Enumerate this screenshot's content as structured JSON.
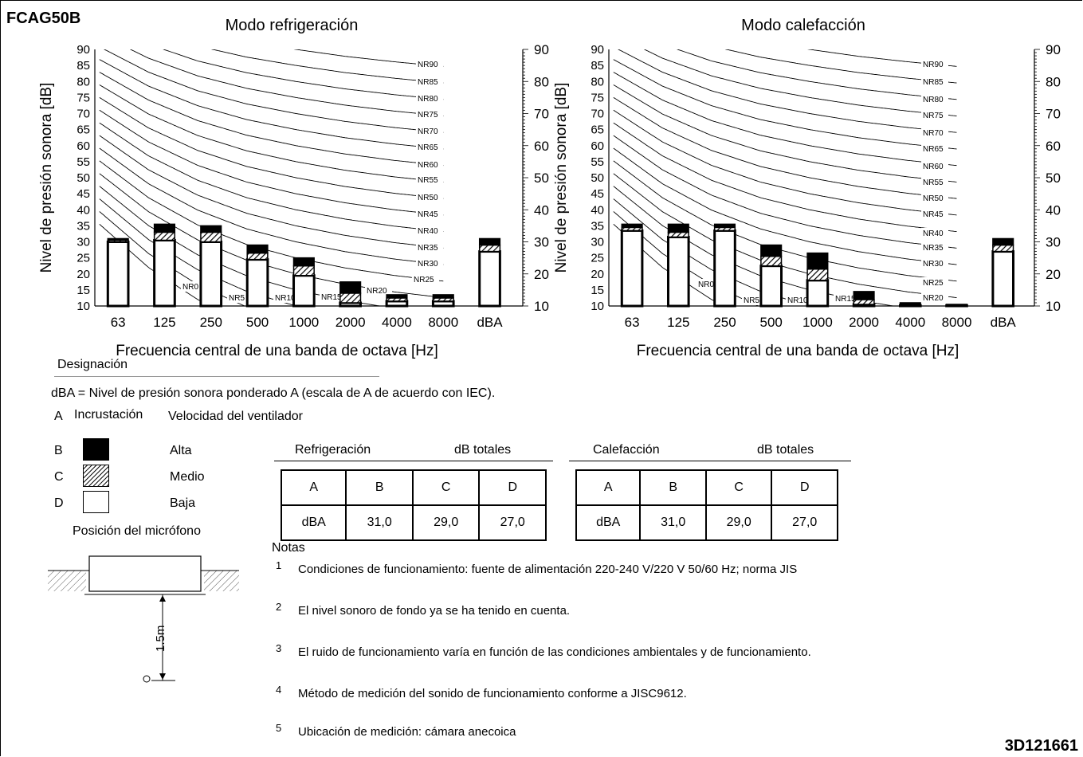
{
  "model": "FCAG50B",
  "doc_number": "3D121661",
  "colors": {
    "alta": "#000000",
    "baja": "#ffffff",
    "line": "#000000"
  },
  "chart_data": [
    {
      "type": "bar",
      "title": "Modo refrigeración",
      "xlabel": "Frecuencia central de una banda de octava [Hz]",
      "ylabel": "Nivel de presión sonora [dB]",
      "categories": [
        "63",
        "125",
        "250",
        "500",
        "1000",
        "2000",
        "4000",
        "8000",
        "dBA"
      ],
      "ylim": [
        10,
        90
      ],
      "yticks_left": [
        "90",
        "85",
        "80",
        "75",
        "70",
        "65",
        "60",
        "55",
        "50",
        "45",
        "40",
        "35",
        "30",
        "25",
        "20",
        "15",
        "10"
      ],
      "yticks_right": [
        "90",
        "80",
        "70",
        "60",
        "50",
        "40",
        "30",
        "20",
        "10"
      ],
      "series": [
        {
          "name": "Alta",
          "values": [
            31,
            35.5,
            35,
            29,
            25,
            17.5,
            13.5,
            13.5,
            31
          ]
        },
        {
          "name": "Medio",
          "values": [
            30.5,
            33,
            33,
            26.5,
            22.5,
            14,
            12.5,
            12.5,
            29
          ]
        },
        {
          "name": "Baja",
          "values": [
            30,
            30.5,
            30,
            24.5,
            19.5,
            11,
            11.5,
            11.5,
            27
          ]
        }
      ],
      "nr_curves": [
        "NR90",
        "NR85",
        "NR80",
        "NR75",
        "NR70",
        "NR65",
        "NR60",
        "NR55",
        "NR50",
        "NR45",
        "NR40",
        "NR35",
        "NR30",
        "NR25",
        "NR20",
        "NR15",
        "NR10",
        "NR5",
        "NR0"
      ]
    },
    {
      "type": "bar",
      "title": "Modo calefacción",
      "xlabel": "Frecuencia central de una banda de octava [Hz]",
      "ylabel": "Nivel de presión sonora [dB]",
      "categories": [
        "63",
        "125",
        "250",
        "500",
        "1000",
        "2000",
        "4000",
        "8000",
        "dBA"
      ],
      "ylim": [
        10,
        90
      ],
      "yticks_left": [
        "90",
        "85",
        "80",
        "75",
        "70",
        "65",
        "60",
        "55",
        "50",
        "45",
        "40",
        "35",
        "30",
        "25",
        "20",
        "15",
        "10"
      ],
      "yticks_right": [
        "90",
        "80",
        "70",
        "60",
        "50",
        "40",
        "30",
        "20",
        "10"
      ],
      "series": [
        {
          "name": "Alta",
          "values": [
            35.5,
            35.5,
            35.5,
            29,
            26.5,
            14.5,
            11,
            10.5,
            31
          ]
        },
        {
          "name": "Medio",
          "values": [
            34.5,
            33,
            34.5,
            25.5,
            21.5,
            12,
            10.5,
            10.3,
            29
          ]
        },
        {
          "name": "Baja",
          "values": [
            33.5,
            31.5,
            33.5,
            22.5,
            18,
            10.5,
            10.2,
            10.2,
            27
          ]
        }
      ],
      "nr_curves": [
        "NR90",
        "NR85",
        "NR80",
        "NR75",
        "NR70",
        "NR65",
        "NR60",
        "NR55",
        "NR50",
        "NR45",
        "NR40",
        "NR35",
        "NR30",
        "NR25",
        "NR20",
        "NR15",
        "NR10",
        "NR5",
        "NR0"
      ]
    }
  ],
  "legend": {
    "designation_title": "Designación",
    "dba_definition": "dBA = Nivel de presión sonora ponderado A (escala de A de acuerdo con IEC).",
    "header_a": "A",
    "header_incrustacion": "Incrustación",
    "header_velocidad": "Velocidad del ventilador",
    "rows": [
      {
        "letter": "B",
        "label": "Alta"
      },
      {
        "letter": "C",
        "label": "Medio"
      },
      {
        "letter": "D",
        "label": "Baja"
      }
    ],
    "mic_position": "Posición del micrófono",
    "mic_distance": "1.5m"
  },
  "tables": [
    {
      "title": "Refrigeración",
      "unit": "dB totales",
      "headers": [
        "A",
        "B",
        "C",
        "D"
      ],
      "row": [
        "dBA",
        "31,0",
        "29,0",
        "27,0"
      ]
    },
    {
      "title": "Calefacción",
      "unit": "dB totales",
      "headers": [
        "A",
        "B",
        "C",
        "D"
      ],
      "row": [
        "dBA",
        "31,0",
        "29,0",
        "27,0"
      ]
    }
  ],
  "notes": {
    "title": "Notas",
    "items": [
      {
        "num": "1",
        "text": "Condiciones de funcionamiento: fuente de alimentación 220-240 V/220 V 50/60 Hz; norma JIS"
      },
      {
        "num": "2",
        "text": "El nivel sonoro de fondo ya se ha tenido en cuenta."
      },
      {
        "num": "3",
        "text": "El ruido de funcionamiento varía en función de las condiciones ambientales y de funcionamiento."
      },
      {
        "num": "4",
        "text": "Método de medición del sonido de funcionamiento conforme a JISC9612."
      },
      {
        "num": "5",
        "text": "Ubicación de medición: cámara anecoica"
      }
    ]
  }
}
